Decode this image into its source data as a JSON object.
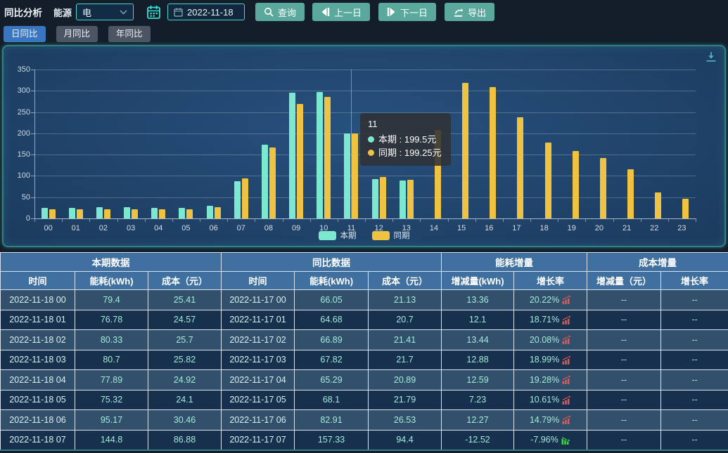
{
  "toolbar": {
    "title": "同比分析",
    "energy_label": "能源",
    "energy_select_value": "电",
    "date_value": "2022-11-18",
    "query_label": "查询",
    "prev_day_label": "上一日",
    "next_day_label": "下一日",
    "export_label": "导出"
  },
  "tabs": [
    {
      "key": "day",
      "label": "日同比",
      "active": true
    },
    {
      "key": "month",
      "label": "月同比",
      "active": false
    },
    {
      "key": "year",
      "label": "年同比",
      "active": false
    }
  ],
  "icons": {
    "calendar": "calendar-icon",
    "calendar_small": "calendar-small-icon",
    "search": "search-icon",
    "prev_day": "prev-day-icon",
    "next_day": "next-day-icon",
    "export": "export-icon",
    "download": "download-icon",
    "chevron": "chevron-down-icon",
    "trend_up": "trend-up-icon",
    "trend_down": "trend-down-icon"
  },
  "colors": {
    "series_current": "#7ce8d0",
    "series_yoy": "#efc341",
    "tab_active": "#3a76c0",
    "button_teal": "#5ba89c",
    "teal_border": "#4fd6cc",
    "table_header_bg": "#40709f",
    "trend_up_red": "#e25650",
    "trend_down_green": "#41cf4f"
  },
  "chart_data": {
    "type": "bar",
    "title": "",
    "unit": "元",
    "categories": [
      "00",
      "01",
      "02",
      "03",
      "04",
      "05",
      "06",
      "07",
      "08",
      "09",
      "10",
      "11",
      "12",
      "13",
      "14",
      "15",
      "16",
      "17",
      "18",
      "19",
      "20",
      "21",
      "22",
      "23"
    ],
    "series": [
      {
        "key": "current",
        "name": "本期",
        "color": "#7ce8d0",
        "values": [
          25.41,
          24.57,
          25.7,
          25.82,
          24.92,
          24.1,
          30.46,
          86.88,
          173.4,
          295.5,
          297,
          199.5,
          93,
          89,
          null,
          null,
          null,
          null,
          null,
          null,
          null,
          null,
          null,
          null
        ]
      },
      {
        "key": "yoy",
        "name": "同期",
        "color": "#efc341",
        "values": [
          21.13,
          20.7,
          21.41,
          21.7,
          20.89,
          21.79,
          26.53,
          94.4,
          167.3,
          269.7,
          285.6,
          199.25,
          98,
          90.5,
          208,
          318,
          308.5,
          237,
          178.5,
          158,
          142.5,
          116,
          61,
          47
        ]
      }
    ],
    "ylim": [
      0,
      350
    ],
    "ytick_interval": 50,
    "grid": true,
    "legend_position": "bottom",
    "highlight_index": 11,
    "tooltip": {
      "title": "11",
      "lines": [
        "本期 : 199.5元",
        "同期 : 199.25元"
      ]
    }
  },
  "table": {
    "groups": [
      {
        "label": "本期数据",
        "span": 3
      },
      {
        "label": "同比数据",
        "span": 3
      },
      {
        "label": "能耗增量",
        "span": 2
      },
      {
        "label": "成本增量",
        "span": 2
      }
    ],
    "columns": [
      "时间",
      "能耗(kWh)",
      "成本（元）",
      "时间",
      "能耗(kWh)",
      "成本（元）",
      "增减量(kWh)",
      "增长率",
      "增减量（元）",
      "增长率"
    ],
    "rows": [
      {
        "cells": [
          "2022-11-18 00",
          "79.4",
          "25.41",
          "2022-11-17 00",
          "66.05",
          "21.13",
          "13.36",
          "20.22%",
          "--",
          "--"
        ],
        "trend": "up"
      },
      {
        "cells": [
          "2022-11-18 01",
          "76.78",
          "24.57",
          "2022-11-17 01",
          "64.68",
          "20.7",
          "12.1",
          "18.71%",
          "--",
          "--"
        ],
        "trend": "up"
      },
      {
        "cells": [
          "2022-11-18 02",
          "80.33",
          "25.7",
          "2022-11-17 02",
          "66.89",
          "21.41",
          "13.44",
          "20.08%",
          "--",
          "--"
        ],
        "trend": "up"
      },
      {
        "cells": [
          "2022-11-18 03",
          "80.7",
          "25.82",
          "2022-11-17 03",
          "67.82",
          "21.7",
          "12.88",
          "18.99%",
          "--",
          "--"
        ],
        "trend": "up"
      },
      {
        "cells": [
          "2022-11-18 04",
          "77.89",
          "24.92",
          "2022-11-17 04",
          "65.29",
          "20.89",
          "12.59",
          "19.28%",
          "--",
          "--"
        ],
        "trend": "up"
      },
      {
        "cells": [
          "2022-11-18 05",
          "75.32",
          "24.1",
          "2022-11-17 05",
          "68.1",
          "21.79",
          "7.23",
          "10.61%",
          "--",
          "--"
        ],
        "trend": "up"
      },
      {
        "cells": [
          "2022-11-18 06",
          "95.17",
          "30.46",
          "2022-11-17 06",
          "82.91",
          "26.53",
          "12.27",
          "14.79%",
          "--",
          "--"
        ],
        "trend": "up"
      },
      {
        "cells": [
          "2022-11-18 07",
          "144.8",
          "86.88",
          "2022-11-17 07",
          "157.33",
          "94.4",
          "-12.52",
          "-7.96%",
          "--",
          "--"
        ],
        "trend": "down"
      }
    ]
  }
}
